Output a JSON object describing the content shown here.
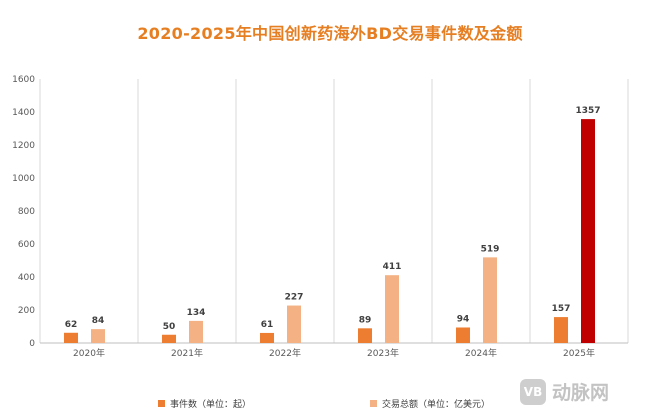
{
  "chart_data": {
    "type": "bar",
    "title": "2020-2025年中国创新药海外BD交易事件数及金额",
    "categories": [
      "2020年",
      "2021年",
      "2022年",
      "2023年",
      "2024年",
      "2025年"
    ],
    "series": [
      {
        "name": "事件数（单位：起）",
        "values": [
          62,
          50,
          61,
          89,
          94,
          157
        ],
        "color": "#ed7d31"
      },
      {
        "name": "交易总额（单位：亿美元）",
        "values": [
          84,
          134,
          227,
          411,
          519,
          1357
        ],
        "color": "#f4b183"
      }
    ],
    "highlight": {
      "series": 1,
      "index": 5,
      "color": "#c00000"
    },
    "ylim": [
      0,
      1600
    ],
    "yticks": [
      0,
      200,
      400,
      600,
      800,
      1000,
      1200,
      1400,
      1600
    ],
    "grid": "vertical category separators",
    "legend": "bottom",
    "xlabel": "",
    "ylabel": ""
  },
  "watermark": {
    "logo_text": "VB",
    "text": "动脉网"
  }
}
